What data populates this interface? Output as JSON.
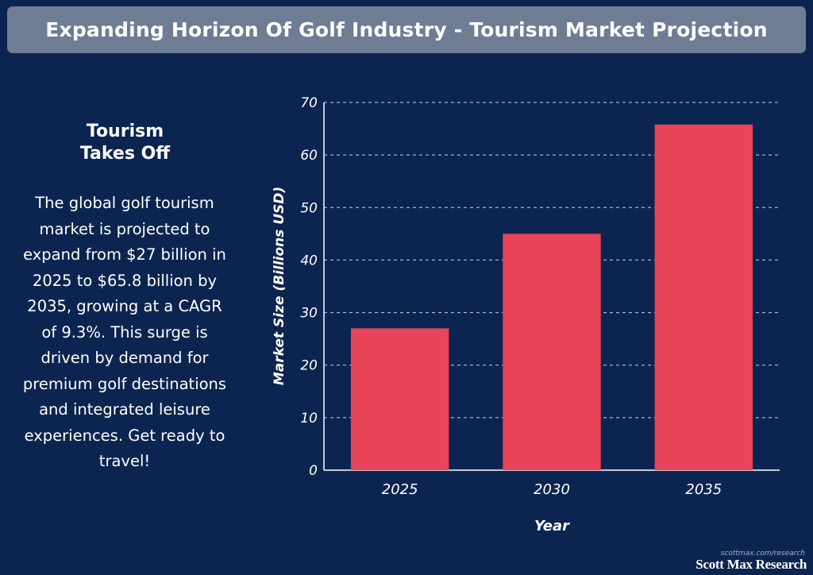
{
  "header": {
    "title": "Expanding Horizon Of Golf Industry - Tourism Market Projection"
  },
  "sidebar": {
    "heading_line1": "Tourism",
    "heading_line2": "Takes Off",
    "body": "The global golf tourism market is projected to expand from $27 billion in 2025 to $65.8 billion by 2035, growing at a CAGR of 9.3%. This surge is driven by demand for premium golf destinations and integrated leisure experiences. Get ready to travel!"
  },
  "chart_data": {
    "type": "bar",
    "categories": [
      "2025",
      "2030",
      "2035"
    ],
    "values": [
      27,
      45,
      65.8
    ],
    "title": "",
    "xlabel": "Year",
    "ylabel": "Market Size (Billions USD)",
    "ylim": [
      0,
      70
    ],
    "yticks": [
      "0",
      "10",
      "20",
      "30",
      "40",
      "50",
      "60",
      "70"
    ],
    "grid": true,
    "bar_color": "#e8445a"
  },
  "footer": {
    "url": "scottmax.com/research",
    "brand": "Scott Max Research"
  }
}
